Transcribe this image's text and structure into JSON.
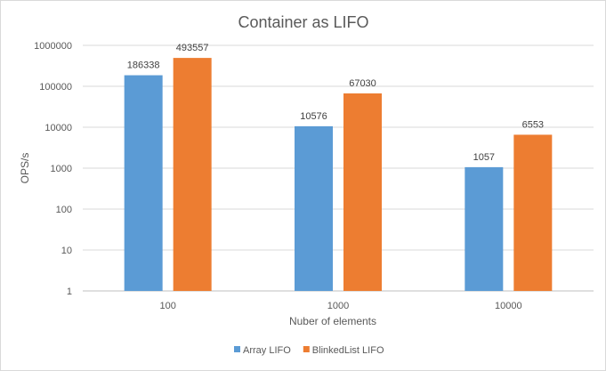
{
  "chart_data": {
    "type": "bar",
    "title": "Container as LIFO",
    "xlabel": "Nuber of elements",
    "ylabel": "OPS/s",
    "yscale": "log",
    "ylim": [
      1,
      1000000
    ],
    "yticks": [
      "1",
      "10",
      "100",
      "1000",
      "10000",
      "100000",
      "1000000"
    ],
    "categories": [
      "100",
      "1000",
      "10000"
    ],
    "series": [
      {
        "name": "Array LIFO",
        "color": "#5b9bd5",
        "values": [
          186338,
          10576,
          1057
        ],
        "labels": [
          "186338",
          "10576",
          "1057"
        ]
      },
      {
        "name": "BlinkedList LIFO",
        "color": "#ed7d31",
        "values": [
          493557,
          67030,
          6553
        ],
        "labels": [
          "493557",
          "67030",
          "6553"
        ]
      }
    ],
    "grid": true,
    "legend": "bottom"
  }
}
